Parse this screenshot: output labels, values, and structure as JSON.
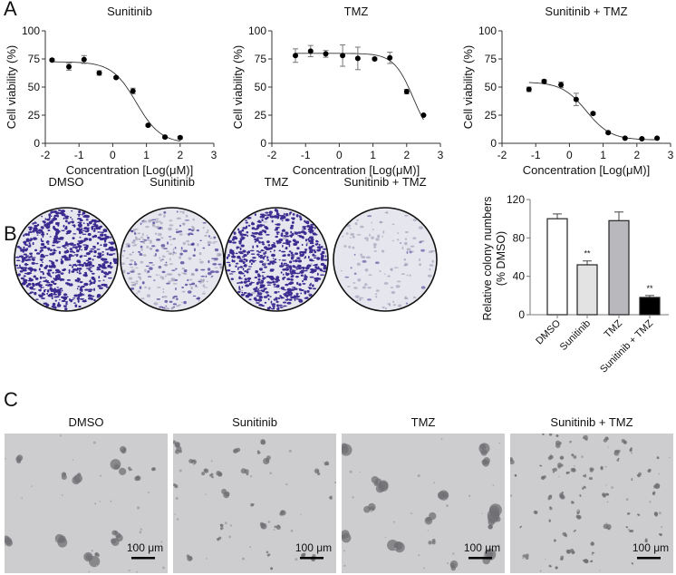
{
  "panels": {
    "a": "A",
    "b": "B",
    "c": "C"
  },
  "chart_data": [
    {
      "type": "scatter",
      "title": "Sunitinib",
      "xlabel": "Concentration [Log(μM)]",
      "ylabel": "Cell viability (%)",
      "xlim": [
        -2,
        3
      ],
      "ylim": [
        0,
        100
      ],
      "xticks": [
        -2,
        -1,
        0,
        1,
        2,
        3
      ],
      "yticks": [
        0,
        25,
        50,
        75,
        100
      ],
      "x": [
        -1.8,
        -1.3,
        -0.85,
        -0.4,
        0.1,
        0.6,
        1.05,
        1.55,
        2.0
      ],
      "y": [
        74,
        68,
        74.5,
        62.5,
        58.5,
        46.5,
        16,
        5.5,
        5
      ],
      "err": [
        1,
        3,
        3.5,
        2,
        1,
        2.5,
        1,
        1,
        1
      ],
      "fit": {
        "top": 72.5,
        "bottom": 0,
        "logIC50": 0.7,
        "hill": 1.2,
        "range": [
          -1.8,
          2.0
        ]
      }
    },
    {
      "type": "scatter",
      "title": "TMZ",
      "xlabel": "Concentration [Log(μM)]",
      "ylabel": "Cell viability (%)",
      "xlim": [
        -2,
        3
      ],
      "ylim": [
        0,
        100
      ],
      "xticks": [
        -2,
        -1,
        0,
        1,
        2,
        3
      ],
      "yticks": [
        0,
        25,
        50,
        75,
        100
      ],
      "x": [
        -1.3,
        -0.85,
        -0.4,
        0.1,
        0.55,
        1.05,
        1.5,
        2.0,
        2.5
      ],
      "y": [
        78,
        82,
        79.5,
        78,
        75.5,
        75,
        76,
        46,
        25
      ],
      "err": [
        6,
        5,
        3,
        9.5,
        10,
        1,
        5,
        2,
        0.5
      ],
      "fit": {
        "top": 80,
        "bottom": 0,
        "logIC50": 2.2,
        "hill": 1.5,
        "range": [
          -1.3,
          2.5
        ]
      }
    },
    {
      "type": "scatter",
      "title": "Sunitinib + TMZ",
      "xlabel": "Concentration [Log(μM)]",
      "ylabel": "Cell viability (%)",
      "xlim": [
        -2,
        3
      ],
      "ylim": [
        0,
        100
      ],
      "xticks": [
        -2,
        -1,
        0,
        1,
        2,
        3
      ],
      "yticks": [
        0,
        25,
        50,
        75,
        100
      ],
      "x": [
        -1.2,
        -0.75,
        -0.25,
        0.2,
        0.7,
        1.15,
        1.65,
        2.15,
        2.6
      ],
      "y": [
        48,
        55,
        52,
        39,
        26.5,
        9.5,
        4.5,
        4,
        4.5
      ],
      "err": [
        2,
        1.5,
        2.5,
        5.5,
        1,
        1,
        0.5,
        0.5,
        0.5
      ],
      "fit": {
        "top": 54.5,
        "bottom": 3,
        "logIC50": 0.5,
        "hill": 1.2,
        "range": [
          -1.2,
          2.6
        ]
      }
    },
    {
      "type": "bar",
      "ylabel": [
        "Relative colony numbers",
        "(% DMSO)"
      ],
      "categories": [
        "DMSO",
        "Sunitinib",
        "TMZ",
        "Sunitinib + TMZ"
      ],
      "values": [
        100,
        52,
        98,
        18
      ],
      "err": [
        5,
        4,
        9,
        2
      ],
      "annotations": [
        "",
        "**",
        "",
        "**"
      ],
      "colors": [
        "#ffffff",
        "#e3e3e3",
        "#b9b9bd",
        "#000000"
      ],
      "ylim": [
        0,
        120
      ],
      "yticks": [
        0,
        40,
        80,
        120
      ]
    }
  ],
  "panel_b": {
    "labels": [
      "DMSO",
      "Sunitinib",
      "TMZ",
      "Sunitinib + TMZ"
    ],
    "stain_density": [
      1.0,
      0.35,
      0.95,
      0.05
    ],
    "stain_color": "#3b2a8f"
  },
  "panel_c": {
    "labels": [
      "DMSO",
      "Sunitinib",
      "TMZ",
      "Sunitinib + TMZ"
    ],
    "scale_bar": "100 μm"
  }
}
